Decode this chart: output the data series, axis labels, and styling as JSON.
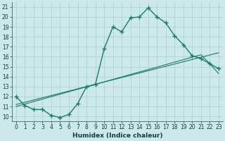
{
  "xlabel": "Humidex (Indice chaleur)",
  "bg_color": "#cce8e8",
  "line_color": "#1a7a6e",
  "xlim": [
    -0.5,
    23.5
  ],
  "ylim": [
    9.5,
    21.5
  ],
  "xticks": [
    0,
    1,
    2,
    3,
    4,
    5,
    6,
    7,
    8,
    9,
    10,
    11,
    12,
    13,
    14,
    15,
    16,
    17,
    18,
    19,
    20,
    21,
    22,
    23
  ],
  "yticks": [
    10,
    11,
    12,
    13,
    14,
    15,
    16,
    17,
    18,
    19,
    20,
    21
  ],
  "curve1_x": [
    0,
    1,
    2,
    3,
    4,
    5,
    6,
    7,
    8,
    9,
    10,
    11,
    12,
    13,
    14,
    15,
    16,
    17,
    18,
    19,
    20,
    21,
    22,
    23
  ],
  "curve1_y": [
    12.0,
    11.1,
    10.7,
    10.7,
    10.1,
    9.9,
    10.2,
    11.3,
    13.0,
    13.2,
    16.8,
    19.0,
    18.5,
    19.9,
    20.0,
    20.9,
    20.0,
    19.4,
    18.1,
    17.2,
    16.1,
    15.8,
    15.3,
    14.8
  ],
  "curve2_x": [
    0,
    23
  ],
  "curve2_y": [
    11.2,
    16.4
  ],
  "curve3_x": [
    0,
    21,
    22,
    23
  ],
  "curve3_y": [
    11.0,
    16.2,
    15.3,
    14.3
  ]
}
